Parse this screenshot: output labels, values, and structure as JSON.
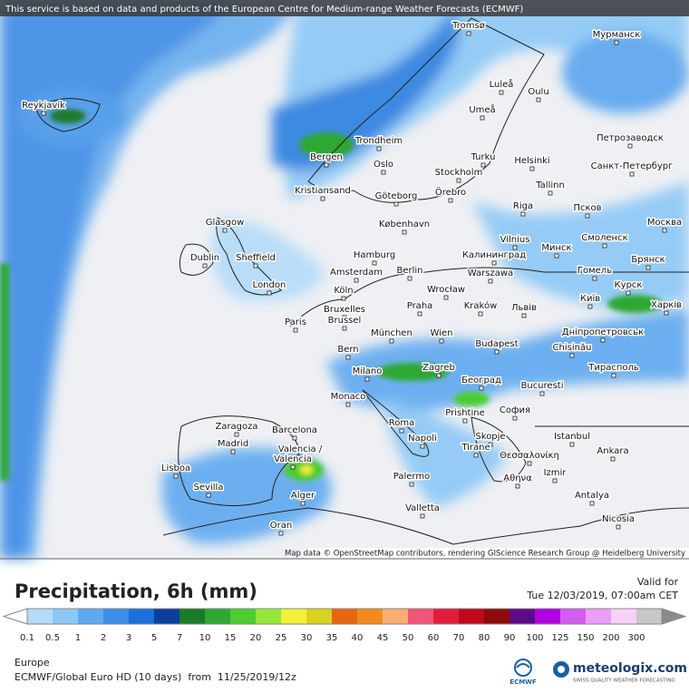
{
  "header": {
    "notice": "This service is based on data and products of the European Centre for Medium-range Weather Forecasts (ECMWF)"
  },
  "map": {
    "attribution": "Map data © OpenStreetMap contributors, rendering GIScience Research Group @ Heidelberg University",
    "cities": [
      "Tromsø",
      "Мурманск",
      "Reykjavík",
      "Luleå",
      "Oulu",
      "Trondheim",
      "Umeå",
      "Петрозаводск",
      "Bergen",
      "Turku",
      "Helsinki",
      "Санкт-Петербург",
      "Oslo",
      "Stockholm",
      "Örebro",
      "Tallinn",
      "Kristiansand",
      "Göteborg",
      "Riga",
      "Псков",
      "Glasgow",
      "København",
      "Москва",
      "Vilnius",
      "Смоленск",
      "Минск",
      "Dublin",
      "Sheffield",
      "Hamburg",
      "Калининград",
      "Брянск",
      "Amsterdam",
      "Berlin",
      "Warszawa",
      "Гомель",
      "London",
      "Köln",
      "Wrocław",
      "Курск",
      "Київ",
      "Bruxelles",
      "Praha",
      "Kraków",
      "Львів",
      "Харків",
      "Brussel",
      "Paris",
      "München",
      "Wien",
      "Дніпропетровськ",
      "Budapest",
      "Chisinău",
      "Bern",
      "Zagreb",
      "Тирасполь",
      "Milano",
      "Београд",
      "Bucuresti",
      "Monaco",
      "Prishtine",
      "София",
      "Roma",
      "Zaragoza",
      "Barcelona",
      "Napoli",
      "Skopje",
      "Istanbul",
      "Madrid",
      "Tirane",
      "Θεσσαλονίκη",
      "Ankara",
      "Valencia /",
      "Valencia",
      "Lisboa",
      "Izmir",
      "Αθηνα",
      "Palermo",
      "Sevilla",
      "Alger",
      "Antalya",
      "Valletta",
      "Oran",
      "Nicosia"
    ]
  },
  "legend": {
    "title": "Precipitation, 6h (mm)",
    "values": [
      0.1,
      0.5,
      1,
      2,
      3,
      5,
      7,
      10,
      15,
      20,
      25,
      30,
      35,
      40,
      45,
      50,
      60,
      70,
      80,
      90,
      100,
      125,
      150,
      200,
      300
    ],
    "colors": [
      "#b4dcfa",
      "#8cc8f6",
      "#5fa9f0",
      "#3a8fe8",
      "#1c6fd9",
      "#0b3f9e",
      "#1a7a2a",
      "#2fa832",
      "#4ccd2e",
      "#94e63a",
      "#f2f23a",
      "#d9d21e",
      "#e8660f",
      "#f28a1e",
      "#f7ad73",
      "#f0557a",
      "#e21c3a",
      "#c0081a",
      "#8e0a0a",
      "#5e0a86",
      "#b000e0",
      "#d45cf0",
      "#ea9ef5",
      "#f6d2f6",
      "#c8c8c8"
    ],
    "under_color": "#ffffff",
    "over_color": "#8a8a8a"
  },
  "valid": {
    "label": "Valid for",
    "time": "Tue 12/03/2019, 07:00am CET"
  },
  "footer": {
    "region": "Europe",
    "model": "ECMWF/Global Euro HD (10 days)  from  11/25/2019/12z",
    "ecmwf": "ECMWF",
    "brand": "meteologix.com",
    "tagline": "SWISS QUALITY WEATHER FORECASTING"
  }
}
